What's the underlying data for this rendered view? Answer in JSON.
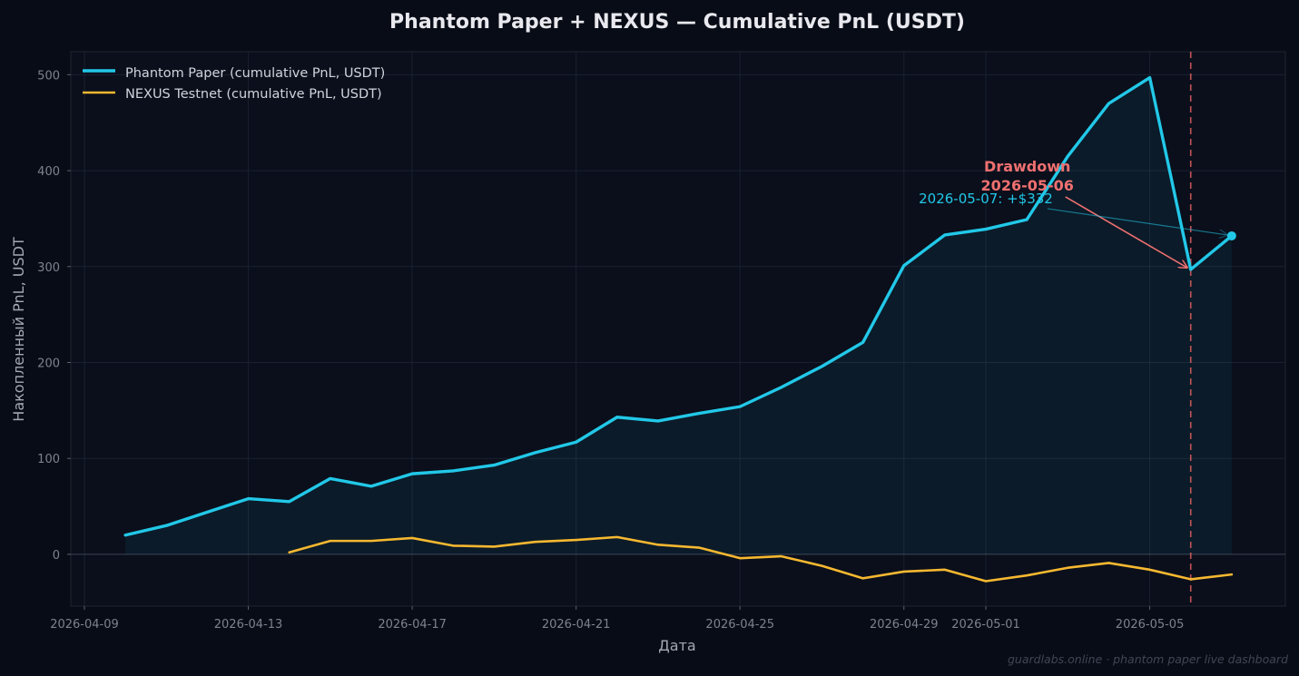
{
  "chart_data": {
    "type": "line",
    "title": "Phantom Paper + NEXUS — Cumulative PnL (USDT)",
    "xlabel": "Дата",
    "ylabel": "Накопленный PnL, USDT",
    "xlim": [
      "2026-04-09",
      "2026-05-08"
    ],
    "ylim": [
      -54,
      524
    ],
    "yticks": [
      0,
      100,
      200,
      300,
      400,
      500
    ],
    "xticks": [
      "2026-04-09",
      "2026-04-13",
      "2026-04-17",
      "2026-04-21",
      "2026-04-25",
      "2026-04-29",
      "2026-05-01",
      "2026-05-05"
    ],
    "grid": true,
    "legend_position": "top-left",
    "series": [
      {
        "name": "Phantom Paper (cumulative PnL, USDT)",
        "color": "#22c8e8",
        "filled": true,
        "x": [
          "2026-04-10",
          "2026-04-11",
          "2026-04-12",
          "2026-04-13",
          "2026-04-14",
          "2026-04-15",
          "2026-04-16",
          "2026-04-17",
          "2026-04-18",
          "2026-04-19",
          "2026-04-20",
          "2026-04-21",
          "2026-04-22",
          "2026-04-23",
          "2026-04-24",
          "2026-04-25",
          "2026-04-26",
          "2026-04-27",
          "2026-04-28",
          "2026-04-29",
          "2026-04-30",
          "2026-05-01",
          "2026-05-02",
          "2026-05-03",
          "2026-05-04",
          "2026-05-05",
          "2026-05-06",
          "2026-05-07"
        ],
        "y": [
          20,
          30,
          44,
          58,
          55,
          79,
          71,
          84,
          87,
          93,
          106,
          117,
          143,
          139,
          147,
          154,
          174,
          196,
          221,
          301,
          333,
          339,
          349,
          415,
          470,
          497,
          297,
          332
        ]
      },
      {
        "name": "NEXUS Testnet (cumulative PnL, USDT)",
        "color": "#f6b830",
        "filled": false,
        "x": [
          "2026-04-14",
          "2026-04-15",
          "2026-04-16",
          "2026-04-17",
          "2026-04-18",
          "2026-04-19",
          "2026-04-20",
          "2026-04-21",
          "2026-04-22",
          "2026-04-23",
          "2026-04-24",
          "2026-04-25",
          "2026-04-26",
          "2026-04-27",
          "2026-04-28",
          "2026-04-29",
          "2026-04-30",
          "2026-05-01",
          "2026-05-02",
          "2026-05-03",
          "2026-05-04",
          "2026-05-05",
          "2026-05-06",
          "2026-05-07"
        ],
        "y": [
          2,
          14,
          14,
          17,
          9,
          8,
          13,
          15,
          18,
          10,
          7,
          -4,
          -2,
          -12,
          -25,
          -18,
          -16,
          -28,
          -22,
          -14,
          -9,
          -16,
          -26,
          -21
        ]
      }
    ],
    "annotations": [
      {
        "id": "drawdown",
        "line1": "Drawdown",
        "line2": "2026-05-06",
        "target_x": "2026-05-06",
        "target_y": 297,
        "color": "#f07070"
      },
      {
        "id": "last",
        "text": "2026-05-07: +$332",
        "target_x": "2026-05-07",
        "target_y": 332,
        "color": "#22c8e8"
      }
    ],
    "vline": {
      "x": "2026-05-06",
      "color": "#e06060"
    }
  },
  "footer": "guardlabs.online · phantom paper live dashboard"
}
